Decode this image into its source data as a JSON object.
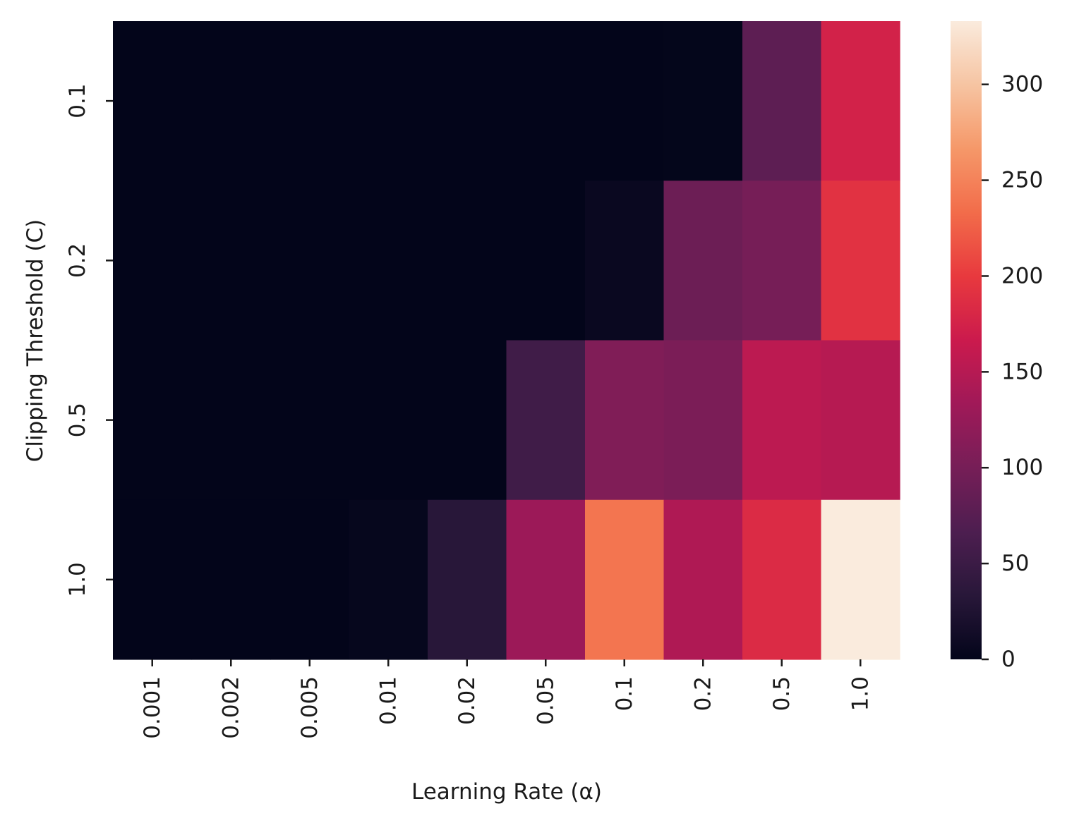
{
  "chart_data": {
    "type": "heatmap",
    "title": "",
    "xlabel": "Learning Rate (α)",
    "ylabel": "Clipping Threshold (C)",
    "x_categories": [
      "0.001",
      "0.002",
      "0.005",
      "0.01",
      "0.02",
      "0.05",
      "0.1",
      "0.2",
      "0.5",
      "1.0"
    ],
    "y_categories": [
      "0.1",
      "0.2",
      "0.5",
      "1.0"
    ],
    "values": [
      [
        0,
        0,
        0,
        0,
        0,
        0,
        0,
        1,
        80,
        175
      ],
      [
        0,
        0,
        0,
        0,
        0,
        0,
        6,
        92,
        100,
        192
      ],
      [
        0,
        0,
        0,
        0,
        0,
        55,
        108,
        104,
        155,
        150
      ],
      [
        0,
        0,
        0,
        3,
        33,
        130,
        240,
        145,
        185,
        333
      ]
    ],
    "colorbar": {
      "range": [
        0,
        333
      ],
      "ticks": [
        "0",
        "50",
        "100",
        "150",
        "200",
        "250",
        "300"
      ],
      "tick_values": [
        0,
        50,
        100,
        150,
        200,
        250,
        300
      ],
      "colormap": "rocket"
    }
  }
}
